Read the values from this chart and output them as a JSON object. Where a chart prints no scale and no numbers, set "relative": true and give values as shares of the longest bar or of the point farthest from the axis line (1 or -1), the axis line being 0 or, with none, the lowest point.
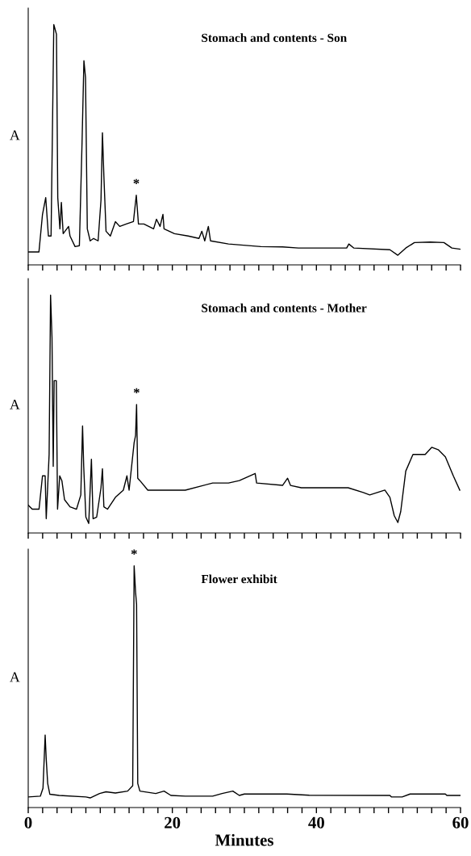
{
  "chart_data": [
    {
      "type": "line",
      "title": "Stomach and contents - Son",
      "ylabel": "A",
      "relative": true,
      "tick_labels": false,
      "xlim": [
        0,
        60
      ],
      "xticks": [
        0,
        {
          "value": 2,
          "label": null
        },
        {
          "value": 4,
          "label": null
        },
        {
          "value": 6,
          "label": null
        },
        {
          "value": 8,
          "label": null
        },
        {
          "value": 10,
          "label": null
        },
        {
          "value": 12,
          "label": null
        },
        {
          "value": 14,
          "label": null
        },
        {
          "value": 16,
          "label": null
        },
        {
          "value": 18,
          "label": null
        },
        20,
        {
          "value": 22,
          "label": null
        },
        {
          "value": 24,
          "label": null
        },
        {
          "value": 26,
          "label": null
        },
        {
          "value": 28,
          "label": null
        },
        {
          "value": 30,
          "label": null
        },
        {
          "value": 32,
          "label": null
        },
        {
          "value": 34,
          "label": null
        },
        {
          "value": 36,
          "label": null
        },
        {
          "value": 38,
          "label": null
        },
        40,
        {
          "value": 42,
          "label": null
        },
        {
          "value": 44,
          "label": null
        },
        {
          "value": 46,
          "label": null
        },
        {
          "value": 48,
          "label": null
        },
        {
          "value": 50,
          "label": null
        },
        {
          "value": 52,
          "label": null
        },
        {
          "value": 54,
          "label": null
        },
        {
          "value": 56,
          "label": null
        },
        {
          "value": 58,
          "label": null
        },
        60
      ],
      "annotations": [
        {
          "text": "*",
          "x": 15.0,
          "y": 0.29
        }
      ],
      "x": [
        0,
        1.49,
        1.98,
        2.43,
        2.8,
        3.17,
        3.55,
        3.92,
        4.1,
        4.4,
        4.6,
        4.85,
        5.6,
        5.8,
        6.5,
        7.1,
        7.47,
        7.73,
        7.95,
        8.2,
        8.6,
        9.07,
        9.7,
        10.1,
        10.3,
        10.5,
        10.8,
        11.4,
        12.1,
        12.7,
        13.6,
        14.6,
        15.0,
        15.3,
        16.05,
        17.4,
        17.8,
        18.3,
        18.7,
        18.85,
        20.3,
        22.2,
        23.7,
        24.1,
        24.5,
        25.0,
        25.3,
        27.8,
        32.3,
        35.3,
        37.5,
        44.2,
        44.5,
        45.2,
        50.2,
        51.3,
        52.4,
        53.6,
        55.8,
        57.7,
        58.8,
        60
      ],
      "series": [
        {
          "color": "#000000",
          "values": [
            0.054,
            0.054,
            0.21,
            0.28,
            0.12,
            0.12,
            1.0,
            0.96,
            0.28,
            0.15,
            0.26,
            0.13,
            0.16,
            0.12,
            0.076,
            0.08,
            0.51,
            0.85,
            0.78,
            0.15,
            0.1,
            0.11,
            0.1,
            0.27,
            0.55,
            0.37,
            0.14,
            0.12,
            0.18,
            0.16,
            0.17,
            0.18,
            0.29,
            0.17,
            0.17,
            0.15,
            0.19,
            0.16,
            0.21,
            0.15,
            0.13,
            0.12,
            0.11,
            0.14,
            0.1,
            0.16,
            0.1,
            0.087,
            0.076,
            0.075,
            0.07,
            0.07,
            0.087,
            0.07,
            0.063,
            0.04,
            0.07,
            0.093,
            0.095,
            0.093,
            0.07,
            0.065
          ]
        }
      ]
    },
    {
      "type": "line",
      "title": "Stomach and contents - Mother",
      "ylabel": "A",
      "relative": true,
      "tick_labels": false,
      "xlim": [
        0,
        60
      ],
      "xticks": [
        0,
        {
          "value": 2,
          "label": null
        },
        {
          "value": 4,
          "label": null
        },
        {
          "value": 6,
          "label": null
        },
        {
          "value": 8,
          "label": null
        },
        {
          "value": 10,
          "label": null
        },
        {
          "value": 12,
          "label": null
        },
        {
          "value": 14,
          "label": null
        },
        {
          "value": 16,
          "label": null
        },
        {
          "value": 18,
          "label": null
        },
        20,
        {
          "value": 22,
          "label": null
        },
        {
          "value": 24,
          "label": null
        },
        {
          "value": 26,
          "label": null
        },
        {
          "value": 28,
          "label": null
        },
        {
          "value": 30,
          "label": null
        },
        {
          "value": 32,
          "label": null
        },
        {
          "value": 34,
          "label": null
        },
        {
          "value": 36,
          "label": null
        },
        {
          "value": 38,
          "label": null
        },
        40,
        {
          "value": 42,
          "label": null
        },
        {
          "value": 44,
          "label": null
        },
        {
          "value": 46,
          "label": null
        },
        {
          "value": 48,
          "label": null
        },
        {
          "value": 50,
          "label": null
        },
        {
          "value": 52,
          "label": null
        },
        {
          "value": 54,
          "label": null
        },
        {
          "value": 56,
          "label": null
        },
        {
          "value": 58,
          "label": null
        },
        60
      ],
      "annotations": [
        {
          "text": "*",
          "x": 15.04,
          "y": 0.54
        }
      ],
      "x": [
        0,
        0.56,
        1.5,
        1.98,
        2.35,
        2.5,
        2.9,
        3.1,
        3.3,
        3.47,
        3.6,
        3.9,
        4.07,
        4.37,
        4.67,
        5.04,
        5.8,
        6.7,
        7.3,
        7.54,
        7.7,
        8.0,
        8.4,
        8.77,
        9.0,
        9.5,
        10.1,
        10.3,
        10.5,
        11.0,
        12.1,
        13.2,
        13.7,
        14.0,
        14.7,
        14.9,
        15.04,
        15.2,
        15.5,
        16.6,
        18.85,
        21.8,
        25.6,
        27.8,
        29.3,
        31.5,
        31.7,
        35.3,
        36.0,
        36.4,
        37.9,
        40.9,
        44.4,
        46.5,
        47.4,
        49.5,
        50.2,
        50.8,
        51.3,
        51.7,
        52.4,
        53.4,
        55.1,
        56.0,
        56.9,
        57.9,
        59.0,
        59.9
      ],
      "series": [
        {
          "color": "#000000",
          "values": [
            0.117,
            0.1,
            0.1,
            0.24,
            0.24,
            0.06,
            0.33,
            1.0,
            0.82,
            0.28,
            0.64,
            0.64,
            0.1,
            0.24,
            0.22,
            0.14,
            0.11,
            0.1,
            0.16,
            0.45,
            0.28,
            0.067,
            0.04,
            0.31,
            0.06,
            0.067,
            0.19,
            0.27,
            0.11,
            0.1,
            0.15,
            0.18,
            0.24,
            0.18,
            0.38,
            0.41,
            0.54,
            0.23,
            0.22,
            0.18,
            0.18,
            0.18,
            0.21,
            0.21,
            0.22,
            0.25,
            0.21,
            0.2,
            0.23,
            0.2,
            0.19,
            0.19,
            0.19,
            0.17,
            0.16,
            0.18,
            0.15,
            0.073,
            0.044,
            0.09,
            0.26,
            0.33,
            0.33,
            0.36,
            0.35,
            0.32,
            0.24,
            0.18
          ]
        }
      ]
    },
    {
      "type": "line",
      "title": "Flower exhibit",
      "ylabel": "A",
      "xlabel": "Minutes",
      "relative": true,
      "tick_labels": "x",
      "xlim": [
        0,
        60
      ],
      "xticks": [
        0,
        {
          "value": 2,
          "label": null
        },
        {
          "value": 4,
          "label": null
        },
        {
          "value": 6,
          "label": null
        },
        {
          "value": 8,
          "label": null
        },
        {
          "value": 10,
          "label": null
        },
        {
          "value": 12,
          "label": null
        },
        {
          "value": 14,
          "label": null
        },
        {
          "value": 16,
          "label": null
        },
        {
          "value": 18,
          "label": null
        },
        20,
        {
          "value": 22,
          "label": null
        },
        {
          "value": 24,
          "label": null
        },
        {
          "value": 26,
          "label": null
        },
        {
          "value": 28,
          "label": null
        },
        {
          "value": 30,
          "label": null
        },
        {
          "value": 32,
          "label": null
        },
        {
          "value": 34,
          "label": null
        },
        {
          "value": 36,
          "label": null
        },
        {
          "value": 38,
          "label": null
        },
        40,
        {
          "value": 42,
          "label": null
        },
        {
          "value": 44,
          "label": null
        },
        {
          "value": 46,
          "label": null
        },
        {
          "value": 48,
          "label": null
        },
        {
          "value": 50,
          "label": null
        },
        {
          "value": 52,
          "label": null
        },
        {
          "value": 54,
          "label": null
        },
        {
          "value": 56,
          "label": null
        },
        {
          "value": 58,
          "label": null
        },
        60
      ],
      "annotations": [
        {
          "text": "*",
          "x": 14.7,
          "y": 1.0
        }
      ],
      "x": [
        0,
        1.68,
        2.05,
        2.35,
        2.5,
        2.7,
        3.0,
        4.3,
        8.0,
        8.6,
        9.9,
        10.8,
        12.1,
        13.8,
        14.5,
        14.7,
        14.9,
        15.04,
        15.2,
        15.5,
        17.7,
        18.85,
        19.8,
        21.8,
        25.6,
        26.9,
        28.4,
        29.3,
        30.0,
        35.9,
        39.0,
        50.2,
        50.4,
        51.9,
        53.0,
        57.9,
        58.1,
        60
      ],
      "series": [
        {
          "color": "#000000",
          "values": [
            0.044,
            0.047,
            0.08,
            0.3,
            0.2,
            0.1,
            0.055,
            0.05,
            0.044,
            0.04,
            0.058,
            0.065,
            0.06,
            0.068,
            0.09,
            1.0,
            0.89,
            0.84,
            0.1,
            0.068,
            0.058,
            0.068,
            0.05,
            0.047,
            0.047,
            0.058,
            0.068,
            0.05,
            0.056,
            0.056,
            0.051,
            0.05,
            0.044,
            0.044,
            0.056,
            0.056,
            0.05,
            0.05
          ]
        }
      ]
    }
  ]
}
